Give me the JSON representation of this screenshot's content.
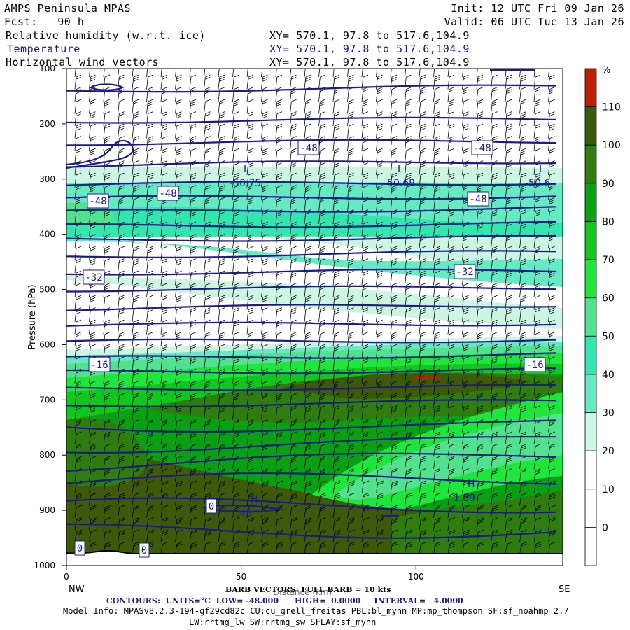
{
  "header": {
    "model": "AMPS Peninsula MPAS",
    "init": "Init: 12 UTC Fri 09 Jan 26",
    "fcst": "Fcst:   90 h",
    "valid": "Valid: 06 UTC Tue 13 Jan 26",
    "fields": [
      {
        "label": "Relative humidity (w.r.t. ice)",
        "xy": "XY= 570.1, 97.8 to 517.6,104.9"
      },
      {
        "label": "Temperature",
        "xy": "XY= 570.1, 97.8 to 517.6,104.9"
      },
      {
        "label": "Horizontal wind vectors",
        "xy": "XY= 570.1, 97.8 to 517.6,104.9"
      }
    ]
  },
  "chart_data": {
    "type": "heatmap",
    "title": "Relative humidity (w.r.t. ice), Temperature, Horizontal wind vectors",
    "xlabel": "Distance (km)",
    "ylabel": "Pressure (hPa)",
    "x_ticks": [
      0,
      50,
      100
    ],
    "x_range": [
      0,
      142
    ],
    "y_ticks": [
      100,
      200,
      300,
      400,
      500,
      600,
      700,
      800,
      900,
      1000
    ],
    "y_range": [
      100,
      1000
    ],
    "y_inverted": true,
    "x_end_labels": {
      "left": "NW",
      "right": "SE"
    },
    "colorbar": {
      "unit": "%",
      "levels": [
        0,
        10,
        20,
        30,
        40,
        50,
        60,
        70,
        80,
        90,
        100,
        110
      ],
      "colors": [
        "#ffffff",
        "#ffffff",
        "#ffffff",
        "#ccf5e2",
        "#66eac4",
        "#33e6b0",
        "#52e28f",
        "#1ee63c",
        "#10c81c",
        "#0aa014",
        "#2e7d0e",
        "#3d5a0a",
        "#c01e04"
      ]
    },
    "contour_labels": [
      "-48",
      "-48",
      "-48",
      "-48",
      "-48",
      "-32",
      "-32",
      "-16",
      "-16",
      "0",
      "0",
      "0"
    ],
    "extrema": [
      {
        "type": "L",
        "value": "-50.75"
      },
      {
        "type": "L",
        "value": "-50.69"
      },
      {
        "type": "L",
        "value": "-50.6"
      },
      {
        "type": "H",
        "value": ".45"
      },
      {
        "type": "H",
        "value": "1.39"
      }
    ],
    "temperature_contours_hpa": [
      140,
      195,
      235,
      275,
      310,
      335,
      360,
      385,
      410,
      440,
      470,
      500,
      535,
      565,
      595,
      625,
      650,
      680,
      710,
      745,
      780,
      815,
      850,
      895,
      940
    ]
  },
  "footer": {
    "barb": "BARB VECTORS: FULL BARB = 10 kts",
    "xlabel_overlay": "Distance (km)",
    "contours": "CONTOURS:  UNITS=°C  LOW= -48.000      HIGH=  0.0000     INTERVAL=   4.0000",
    "model_info": "Model Info: MPASv8.2.3-194-gf29cd82c CU:cu_grell_freitas PBL:bl_mynn MP:mp_thompson SF:sf_noahmp 2.7",
    "physics": "LW:rrtmg_lw SW:rrtmg_sw SFLAY:sf_mynn"
  },
  "colors": {
    "contour": "#1a1a8c",
    "axis": "#000000"
  }
}
